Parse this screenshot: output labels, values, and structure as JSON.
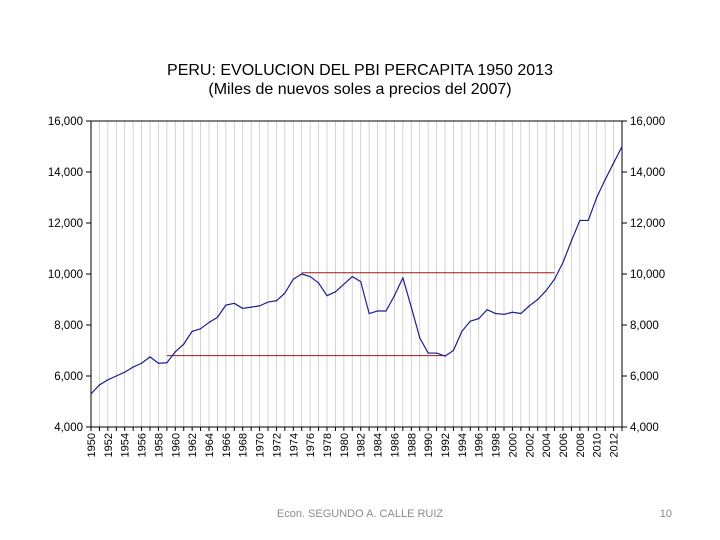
{
  "title": "PERU: EVOLUCION DEL PBI PERCAPITA 1950 2013",
  "subtitle": "(Miles de nuevos soles a precios del 2007)",
  "footer": {
    "author": "Econ. SEGUNDO A. CALLE RUIZ",
    "page": "10"
  },
  "colors": {
    "series": "#1f1f8c",
    "reference": "#a01818",
    "grid": "#c8c8c8",
    "axis": "#000000"
  },
  "chart_data": {
    "type": "line",
    "x": [
      1950,
      1951,
      1952,
      1953,
      1954,
      1955,
      1956,
      1957,
      1958,
      1959,
      1960,
      1961,
      1962,
      1963,
      1964,
      1965,
      1966,
      1967,
      1968,
      1969,
      1970,
      1971,
      1972,
      1973,
      1974,
      1975,
      1976,
      1977,
      1978,
      1979,
      1980,
      1981,
      1982,
      1983,
      1984,
      1985,
      1986,
      1987,
      1988,
      1989,
      1990,
      1991,
      1992,
      1993,
      1994,
      1995,
      1996,
      1997,
      1998,
      1999,
      2000,
      2001,
      2002,
      2003,
      2004,
      2005,
      2006,
      2007,
      2008,
      2009,
      2010,
      2011,
      2012,
      2013
    ],
    "series": [
      {
        "values": [
          5300,
          5650,
          5850,
          6000,
          6150,
          6350,
          6500,
          6750,
          6500,
          6520,
          6950,
          7250,
          7750,
          7850,
          8100,
          8300,
          8780,
          8850,
          8650,
          8700,
          8750,
          8900,
          8950,
          9250,
          9800,
          10000,
          9900,
          9650,
          9150,
          9300,
          9600,
          9900,
          9700,
          8450,
          8550,
          8550,
          9150,
          9850,
          8700,
          7500,
          6900,
          6900,
          6780,
          7000,
          7750,
          8150,
          8250,
          8600,
          8450,
          8420,
          8500,
          8450,
          8750,
          9000,
          9350,
          9800,
          10450,
          11300,
          12100,
          12100,
          13000,
          13700,
          14350,
          15000
        ]
      }
    ],
    "reference_lines": [
      {
        "y": 10050,
        "x_start": 1975,
        "x_end": 2005
      },
      {
        "y": 6800,
        "x_start": 1959,
        "x_end": 1992
      }
    ],
    "ylim": [
      4000,
      16000
    ],
    "yticks": [
      4000,
      6000,
      8000,
      10000,
      12000,
      14000,
      16000
    ],
    "ytick_labels": [
      "4,000",
      "6,000",
      "8,000",
      "10,000",
      "12,000",
      "14,000",
      "16,000"
    ],
    "xlim": [
      1950,
      2013
    ],
    "xtick_labels": [
      "1950",
      "1952",
      "1954",
      "1956",
      "1958",
      "1960",
      "1962",
      "1964",
      "1966",
      "1968",
      "1970",
      "1972",
      "1974",
      "1976",
      "1978",
      "1980",
      "1982",
      "1984",
      "1986",
      "1988",
      "1990",
      "1992",
      "1994",
      "1996",
      "1998",
      "2000",
      "2002",
      "2004",
      "2006",
      "2008",
      "2010",
      "2012"
    ],
    "y_axis_both_sides": true,
    "grid": "vertical",
    "legend": "none"
  }
}
